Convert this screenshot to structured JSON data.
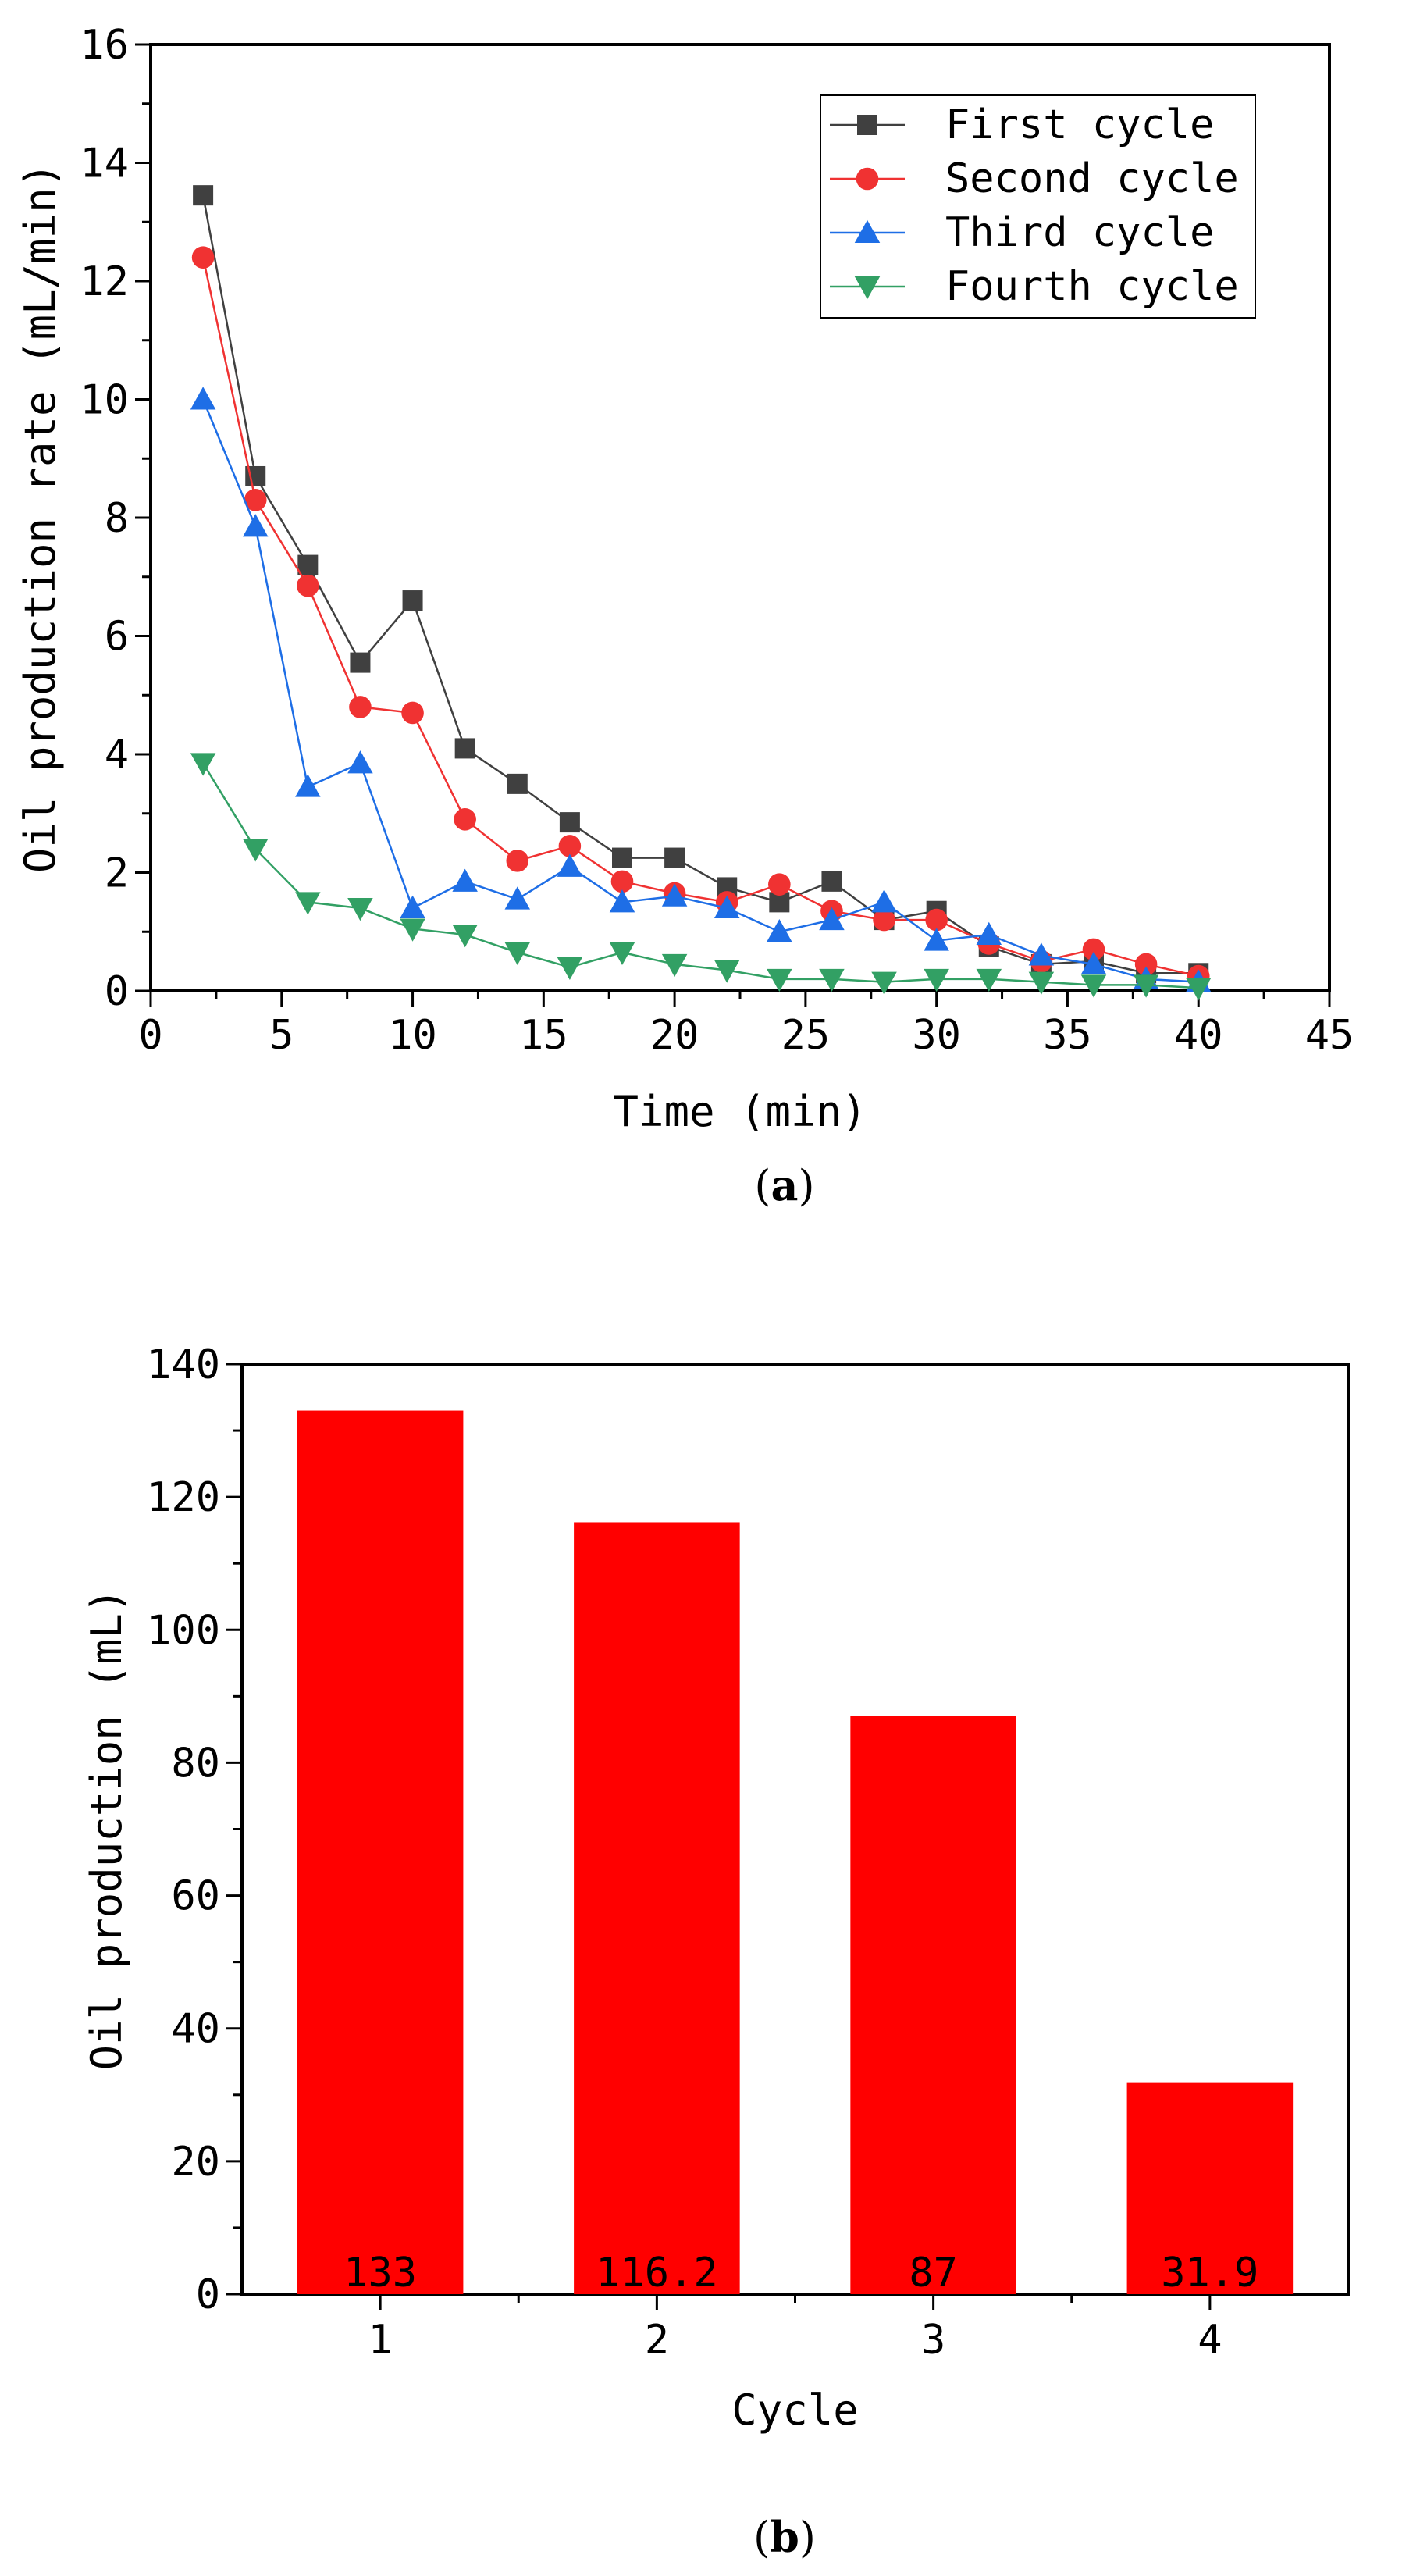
{
  "chart_data": [
    {
      "panel": "a",
      "type": "line",
      "title": "",
      "xlabel": "Time (min)",
      "ylabel": "Oil production rate (mL/min)",
      "xlim": [
        0,
        45
      ],
      "ylim": [
        0,
        16
      ],
      "xticks": [
        0,
        5,
        10,
        15,
        20,
        25,
        30,
        35,
        40,
        45
      ],
      "yticks": [
        0,
        2,
        4,
        6,
        8,
        10,
        12,
        14,
        16
      ],
      "legend_position": "top-right",
      "x": [
        2,
        4,
        6,
        8,
        10,
        12,
        14,
        16,
        18,
        20,
        22,
        24,
        26,
        28,
        30,
        32,
        34,
        36,
        38,
        40
      ],
      "series": [
        {
          "name": "First cycle",
          "marker": "square",
          "color": "#404040",
          "values": [
            13.45,
            8.7,
            7.2,
            5.55,
            6.6,
            4.1,
            3.5,
            2.85,
            2.25,
            2.25,
            1.75,
            1.5,
            1.85,
            1.2,
            1.35,
            0.75,
            0.45,
            0.5,
            0.3,
            0.3
          ]
        },
        {
          "name": "Second cycle",
          "marker": "circle",
          "color": "#f03232",
          "values": [
            12.4,
            8.3,
            6.85,
            4.8,
            4.7,
            2.9,
            2.2,
            2.45,
            1.85,
            1.65,
            1.5,
            1.8,
            1.35,
            1.2,
            1.2,
            0.8,
            0.5,
            0.7,
            0.45,
            0.25
          ]
        },
        {
          "name": "Third cycle",
          "marker": "triangle-up",
          "color": "#1e6ee6",
          "values": [
            10.0,
            7.85,
            3.45,
            3.85,
            1.4,
            1.85,
            1.55,
            2.1,
            1.5,
            1.6,
            1.4,
            1.0,
            1.2,
            1.5,
            0.85,
            0.95,
            0.6,
            0.45,
            0.2,
            0.15
          ]
        },
        {
          "name": "Fourth cycle",
          "marker": "triangle-down",
          "color": "#32a064",
          "values": [
            3.85,
            2.4,
            1.5,
            1.4,
            1.05,
            0.95,
            0.65,
            0.4,
            0.65,
            0.45,
            0.35,
            0.2,
            0.2,
            0.15,
            0.2,
            0.2,
            0.15,
            0.1,
            0.1,
            0.05
          ]
        }
      ]
    },
    {
      "panel": "b",
      "type": "bar",
      "title": "",
      "xlabel": "Cycle",
      "ylabel": "Oil production (mL)",
      "ylim": [
        0,
        140
      ],
      "yticks": [
        0,
        20,
        40,
        60,
        80,
        100,
        120,
        140
      ],
      "categories": [
        "1",
        "2",
        "3",
        "4"
      ],
      "values": [
        133,
        116.2,
        87,
        31.9
      ],
      "data_labels": [
        "133",
        "116.2",
        "87",
        "31.9"
      ],
      "color": "#ff0000"
    }
  ],
  "captions": {
    "a": {
      "open": "(",
      "letter": "a",
      "close": ")"
    },
    "b": {
      "open": "(",
      "letter": "b",
      "close": ")"
    }
  }
}
